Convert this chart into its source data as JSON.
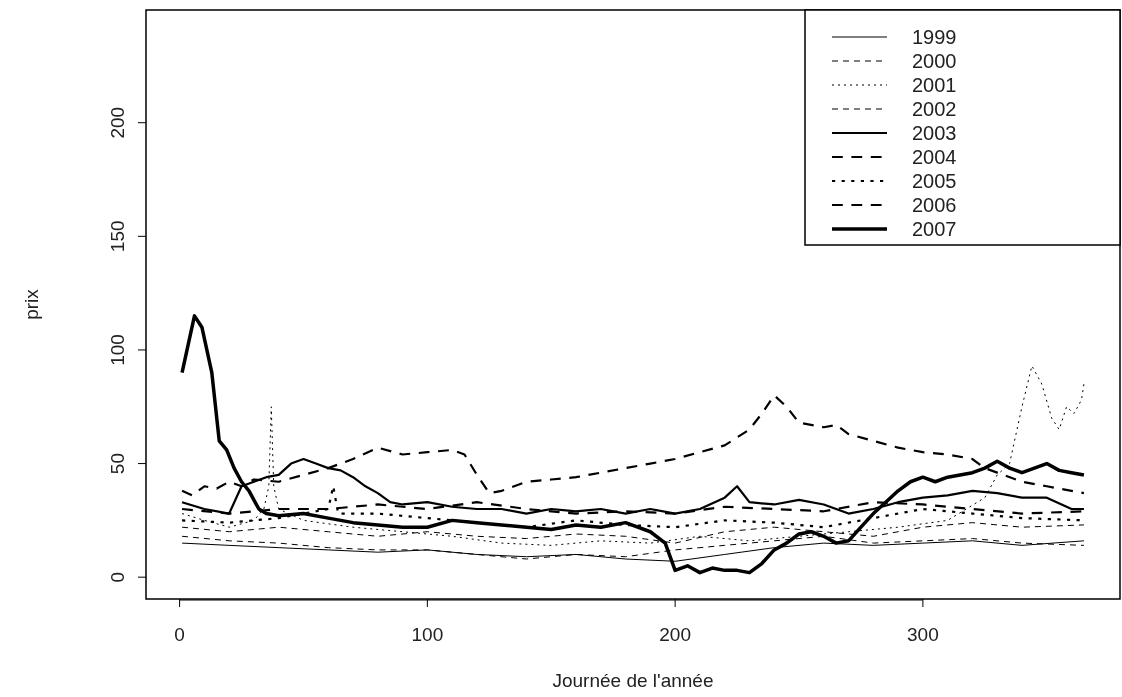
{
  "chart_data": {
    "type": "line",
    "xlabel": "Journée de l'année",
    "ylabel": "prix",
    "xlim": [
      -13.56,
      379.56
    ],
    "ylim": [
      -9.6,
      249.6
    ],
    "xticks": [
      0,
      100,
      200,
      300
    ],
    "yticks": [
      0,
      50,
      100,
      150,
      200
    ],
    "legend": "top right",
    "grid": false,
    "series": [
      {
        "name": "1999",
        "color": "#000000",
        "line_style": "solid",
        "x": [
          1,
          20,
          40,
          60,
          80,
          100,
          120,
          140,
          160,
          180,
          200,
          220,
          240,
          260,
          280,
          300,
          320,
          340,
          365
        ],
        "values": [
          15,
          14,
          13,
          12,
          11,
          12,
          10,
          9,
          10,
          8,
          7,
          10,
          13,
          15,
          14,
          15,
          16,
          14,
          16
        ]
      },
      {
        "name": "2000",
        "color": "#000000",
        "line_style": "dashed",
        "x": [
          1,
          20,
          40,
          60,
          80,
          100,
          120,
          140,
          160,
          180,
          200,
          220,
          240,
          260,
          280,
          300,
          320,
          340,
          365
        ],
        "values": [
          18,
          16,
          15,
          13,
          12,
          12,
          10,
          8,
          10,
          9,
          12,
          14,
          16,
          18,
          15,
          16,
          17,
          15,
          14
        ]
      },
      {
        "name": "2001",
        "color": "#000000",
        "line_style": "dotted",
        "x": [
          1,
          10,
          20,
          30,
          34,
          36,
          37,
          38,
          40,
          50,
          70,
          90,
          110,
          130,
          150,
          170,
          190,
          210,
          230,
          250,
          270,
          290,
          310,
          325,
          330,
          335,
          340,
          344,
          348,
          352,
          355,
          358,
          361,
          364,
          365
        ],
        "values": [
          28,
          25,
          22,
          25,
          30,
          40,
          75,
          40,
          30,
          25,
          22,
          20,
          18,
          15,
          14,
          16,
          15,
          18,
          16,
          18,
          20,
          22,
          25,
          35,
          45,
          50,
          75,
          93,
          85,
          70,
          65,
          75,
          72,
          78,
          85
        ]
      },
      {
        "name": "2002",
        "color": "#000000",
        "line_style": "dashed",
        "x": [
          1,
          20,
          40,
          60,
          80,
          100,
          120,
          140,
          160,
          180,
          200,
          220,
          240,
          260,
          280,
          300,
          320,
          340,
          365
        ],
        "values": [
          22,
          20,
          22,
          20,
          18,
          20,
          18,
          17,
          19,
          18,
          15,
          20,
          22,
          20,
          18,
          22,
          24,
          22,
          23
        ]
      },
      {
        "name": "2003",
        "color": "#000000",
        "line_style": "solid",
        "x": [
          1,
          10,
          20,
          25,
          30,
          35,
          40,
          45,
          50,
          55,
          60,
          65,
          70,
          75,
          80,
          85,
          90,
          100,
          110,
          120,
          130,
          140,
          150,
          160,
          170,
          180,
          190,
          200,
          210,
          220,
          225,
          230,
          240,
          250,
          260,
          270,
          280,
          290,
          300,
          310,
          320,
          330,
          340,
          350,
          360,
          365
        ],
        "values": [
          33,
          30,
          28,
          40,
          42,
          44,
          45,
          50,
          52,
          50,
          48,
          47,
          44,
          40,
          37,
          33,
          32,
          33,
          31,
          30,
          30,
          28,
          30,
          29,
          30,
          28,
          30,
          28,
          30,
          35,
          40,
          33,
          32,
          34,
          32,
          28,
          30,
          33,
          35,
          36,
          38,
          37,
          35,
          35,
          30,
          30
        ]
      },
      {
        "name": "2004",
        "color": "#000000",
        "line_style": "dashed",
        "x": [
          1,
          20,
          40,
          60,
          80,
          100,
          120,
          140,
          160,
          180,
          200,
          220,
          240,
          260,
          280,
          300,
          320,
          340,
          365
        ],
        "values": [
          30,
          28,
          30,
          30,
          32,
          30,
          33,
          30,
          28,
          29,
          28,
          31,
          30,
          29,
          33,
          32,
          30,
          28,
          29
        ]
      },
      {
        "name": "2005",
        "color": "#000000",
        "line_style": "dotted",
        "x": [
          1,
          20,
          40,
          60,
          62,
          64,
          80,
          100,
          120,
          140,
          160,
          180,
          200,
          220,
          240,
          260,
          280,
          300,
          320,
          340,
          365
        ],
        "values": [
          25,
          24,
          26,
          30,
          40,
          28,
          28,
          26,
          24,
          22,
          25,
          23,
          22,
          25,
          24,
          22,
          26,
          30,
          28,
          26,
          25
        ]
      },
      {
        "name": "2006",
        "color": "#000000",
        "line_style": "dashed",
        "x": [
          1,
          5,
          10,
          15,
          20,
          25,
          30,
          40,
          50,
          60,
          70,
          80,
          90,
          100,
          110,
          115,
          120,
          125,
          130,
          140,
          150,
          160,
          170,
          180,
          190,
          200,
          210,
          220,
          230,
          235,
          240,
          245,
          250,
          260,
          265,
          270,
          280,
          290,
          300,
          310,
          320,
          325,
          330,
          340,
          350,
          365
        ],
        "values": [
          38,
          36,
          40,
          39,
          42,
          40,
          43,
          42,
          45,
          48,
          52,
          57,
          54,
          55,
          56,
          54,
          45,
          37,
          38,
          42,
          43,
          44,
          46,
          48,
          50,
          52,
          55,
          58,
          65,
          72,
          80,
          75,
          68,
          66,
          67,
          63,
          60,
          57,
          55,
          54,
          52,
          48,
          46,
          42,
          40,
          37
        ]
      },
      {
        "name": "2007",
        "color": "#000000",
        "line_style": "solid",
        "x": [
          1,
          3,
          6,
          9,
          13,
          16,
          19,
          22,
          25,
          28,
          32,
          35,
          40,
          50,
          60,
          70,
          80,
          90,
          100,
          110,
          120,
          130,
          140,
          150,
          160,
          170,
          180,
          190,
          196,
          200,
          205,
          210,
          215,
          220,
          225,
          230,
          235,
          240,
          245,
          250,
          255,
          260,
          265,
          270,
          275,
          280,
          285,
          290,
          295,
          300,
          305,
          310,
          315,
          320,
          325,
          330,
          335,
          340,
          345,
          350,
          355,
          360,
          365
        ],
        "values": [
          90,
          100,
          115,
          110,
          90,
          60,
          56,
          48,
          42,
          38,
          30,
          28,
          27,
          28,
          26,
          24,
          23,
          22,
          22,
          25,
          24,
          23,
          22,
          21,
          23,
          22,
          24,
          20,
          15,
          3,
          5,
          2,
          4,
          3,
          3,
          2,
          6,
          12,
          15,
          19,
          20,
          18,
          15,
          16,
          22,
          28,
          33,
          38,
          42,
          44,
          42,
          44,
          45,
          46,
          48,
          51,
          48,
          46,
          48,
          50,
          47,
          46,
          45
        ]
      }
    ]
  }
}
